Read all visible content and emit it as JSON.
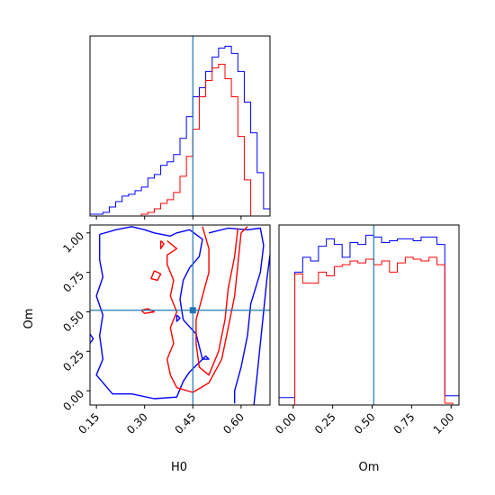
{
  "chart_data": {
    "type": "corner",
    "parameters": [
      "H0",
      "Om"
    ],
    "truth": {
      "H0": 0.45,
      "Om": 0.51
    },
    "colors": {
      "series_a": "#0000ff",
      "series_b": "#ff0000",
      "truth": "#1f77b4"
    },
    "axes": {
      "H0": {
        "range": [
          0.13,
          0.69
        ],
        "ticks": [
          0.15,
          0.3,
          0.45,
          0.6
        ],
        "tick_labels": [
          "0.15",
          "0.30",
          "0.45",
          "0.60"
        ]
      },
      "Om": {
        "range": [
          -0.09,
          1.05
        ],
        "ticks": [
          0.0,
          0.25,
          0.5,
          0.75,
          1.0
        ],
        "tick_labels": [
          "0.00",
          "0.25",
          "0.50",
          "0.75",
          "1.00"
        ]
      }
    },
    "marginal_H0": {
      "bin_edges": [
        0.13,
        0.15,
        0.17,
        0.19,
        0.21,
        0.23,
        0.25,
        0.27,
        0.29,
        0.31,
        0.33,
        0.35,
        0.37,
        0.39,
        0.41,
        0.43,
        0.45,
        0.47,
        0.49,
        0.51,
        0.53,
        0.55,
        0.57,
        0.59,
        0.61,
        0.63,
        0.65,
        0.67,
        0.69
      ],
      "series": [
        {
          "color": "blue",
          "values": [
            0.01,
            0.01,
            0.02,
            0.05,
            0.08,
            0.11,
            0.12,
            0.14,
            0.16,
            0.21,
            0.23,
            0.28,
            0.3,
            0.34,
            0.43,
            0.55,
            0.66,
            0.71,
            0.8,
            0.88,
            0.93,
            0.94,
            0.9,
            0.8,
            0.63,
            0.46,
            0.24,
            0.04
          ]
        },
        {
          "color": "red",
          "values": [
            0,
            0,
            0,
            0,
            0,
            0,
            0,
            0,
            0.01,
            0.02,
            0.04,
            0.07,
            0.09,
            0.13,
            0.22,
            0.33,
            0.48,
            0.66,
            0.75,
            0.82,
            0.84,
            0.76,
            0.66,
            0.44,
            0.2,
            0,
            0,
            0
          ]
        }
      ]
    },
    "marginal_Om": {
      "bin_edges": [
        -0.09,
        -0.04,
        0.01,
        0.06,
        0.11,
        0.16,
        0.21,
        0.26,
        0.31,
        0.36,
        0.41,
        0.46,
        0.51,
        0.56,
        0.61,
        0.66,
        0.71,
        0.76,
        0.81,
        0.86,
        0.91,
        0.96,
        1.01,
        1.05
      ],
      "series": [
        {
          "color": "blue",
          "values": [
            0.04,
            0.04,
            0.72,
            0.8,
            0.78,
            0.86,
            0.9,
            0.87,
            0.8,
            0.88,
            0.87,
            0.92,
            0.91,
            0.88,
            0.89,
            0.9,
            0.9,
            0.89,
            0.91,
            0.91,
            0.87,
            0.05,
            0.05
          ]
        },
        {
          "color": "red",
          "values": [
            0,
            0,
            0.71,
            0.66,
            0.66,
            0.72,
            0.7,
            0.75,
            0.76,
            0.78,
            0.77,
            0.79,
            0.76,
            0.78,
            0.72,
            0.77,
            0.8,
            0.79,
            0.78,
            0.8,
            0.76,
            0.01,
            0
          ]
        }
      ]
    },
    "joint": {
      "contours": [
        {
          "color": "blue",
          "points": [
            [
              0.16,
              0.99
            ],
            [
              0.21,
              1.02
            ],
            [
              0.26,
              1.04
            ],
            [
              0.3,
              1.02
            ],
            [
              0.33,
              1.0
            ],
            [
              0.38,
              0.98
            ],
            [
              0.4,
              1.0
            ],
            [
              0.44,
              1.02
            ],
            [
              0.48,
              0.96
            ],
            [
              0.47,
              0.85
            ],
            [
              0.44,
              0.78
            ],
            [
              0.42,
              0.7
            ],
            [
              0.41,
              0.58
            ],
            [
              0.42,
              0.45
            ],
            [
              0.46,
              0.36
            ],
            [
              0.48,
              0.2
            ],
            [
              0.44,
              0.12
            ],
            [
              0.42,
              0.06
            ],
            [
              0.4,
              -0.04
            ],
            [
              0.33,
              -0.05
            ],
            [
              0.26,
              -0.02
            ],
            [
              0.2,
              -0.02
            ],
            [
              0.15,
              0.1
            ],
            [
              0.17,
              0.2
            ],
            [
              0.16,
              0.35
            ],
            [
              0.17,
              0.48
            ],
            [
              0.15,
              0.6
            ],
            [
              0.17,
              0.72
            ],
            [
              0.16,
              0.83
            ],
            [
              0.16,
              0.99
            ]
          ]
        },
        {
          "color": "blue",
          "points": [
            [
              0.5,
              1.0
            ],
            [
              0.56,
              1.03
            ],
            [
              0.62,
              1.02
            ],
            [
              0.66,
              1.03
            ],
            [
              0.67,
              0.92
            ],
            [
              0.66,
              0.75
            ],
            [
              0.63,
              0.55
            ],
            [
              0.62,
              0.35
            ],
            [
              0.6,
              0.15
            ],
            [
              0.58,
              0.0
            ],
            [
              0.58,
              -0.08
            ]
          ]
        },
        {
          "color": "blue",
          "points": [
            [
              0.69,
              0.86
            ],
            [
              0.68,
              0.7
            ],
            [
              0.67,
              0.5
            ],
            [
              0.66,
              0.3
            ],
            [
              0.65,
              0.1
            ],
            [
              0.64,
              -0.09
            ]
          ]
        },
        {
          "color": "blue",
          "points": [
            [
              0.13,
              0.36
            ],
            [
              0.14,
              0.33
            ],
            [
              0.13,
              0.3
            ]
          ]
        },
        {
          "color": "blue",
          "points": [
            [
              0.4,
              0.48
            ],
            [
              0.41,
              0.46
            ],
            [
              0.4,
              0.44
            ],
            [
              0.4,
              0.48
            ]
          ]
        },
        {
          "color": "blue",
          "points": [
            [
              0.48,
              0.2
            ],
            [
              0.49,
              0.22
            ],
            [
              0.5,
              0.2
            ],
            [
              0.48,
              0.2
            ]
          ]
        },
        {
          "color": "red",
          "points": [
            [
              0.37,
              0.95
            ],
            [
              0.4,
              0.9
            ],
            [
              0.37,
              0.86
            ],
            [
              0.37,
              0.8
            ],
            [
              0.39,
              0.7
            ],
            [
              0.38,
              0.6
            ],
            [
              0.4,
              0.5
            ],
            [
              0.38,
              0.4
            ],
            [
              0.39,
              0.3
            ],
            [
              0.37,
              0.2
            ],
            [
              0.38,
              0.1
            ],
            [
              0.4,
              0.02
            ],
            [
              0.45,
              -0.01
            ],
            [
              0.5,
              0.05
            ],
            [
              0.54,
              0.2
            ],
            [
              0.56,
              0.4
            ],
            [
              0.58,
              0.6
            ],
            [
              0.59,
              0.8
            ],
            [
              0.6,
              1.0
            ],
            [
              0.62,
              1.04
            ]
          ]
        },
        {
          "color": "red",
          "points": [
            [
              0.48,
              1.04
            ],
            [
              0.5,
              0.9
            ],
            [
              0.5,
              0.75
            ],
            [
              0.48,
              0.6
            ],
            [
              0.46,
              0.45
            ],
            [
              0.46,
              0.3
            ],
            [
              0.47,
              0.15
            ],
            [
              0.5,
              0.1
            ],
            [
              0.53,
              0.25
            ],
            [
              0.55,
              0.45
            ],
            [
              0.56,
              0.65
            ],
            [
              0.58,
              0.85
            ],
            [
              0.59,
              1.03
            ]
          ]
        },
        {
          "color": "red",
          "points": [
            [
              0.33,
              0.76
            ],
            [
              0.35,
              0.74
            ],
            [
              0.34,
              0.7
            ],
            [
              0.32,
              0.71
            ],
            [
              0.33,
              0.76
            ]
          ]
        },
        {
          "color": "red",
          "points": [
            [
              0.29,
              0.51
            ],
            [
              0.31,
              0.52
            ],
            [
              0.33,
              0.5
            ],
            [
              0.3,
              0.49
            ],
            [
              0.29,
              0.51
            ]
          ]
        },
        {
          "color": "red",
          "points": [
            [
              0.35,
              0.95
            ],
            [
              0.36,
              0.93
            ],
            [
              0.35,
              0.9
            ],
            [
              0.35,
              0.95
            ]
          ]
        }
      ]
    },
    "xlabel_left": "H0",
    "xlabel_right": "Om",
    "ylabel_joint": "Om"
  }
}
